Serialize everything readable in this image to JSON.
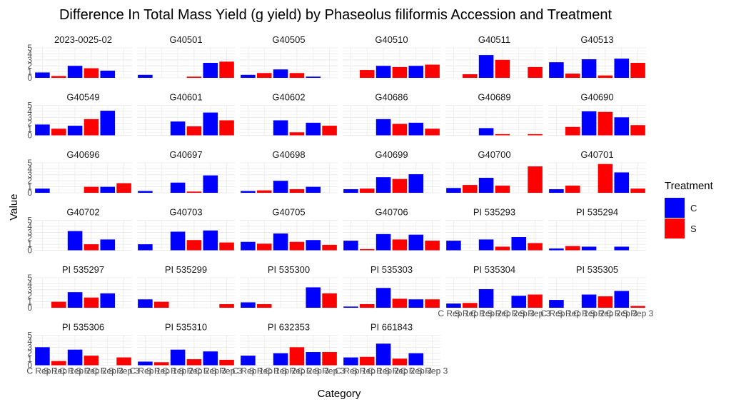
{
  "chart_data": {
    "type": "bar",
    "title": "Difference In Total Mass Yield (g yield) by Phaseolus filiformis Accession and Treatment",
    "xlabel": "Category",
    "ylabel": "Value",
    "ylim": [
      0,
      5
    ],
    "y_ticks": [
      "0",
      "1",
      "2",
      "3",
      "4",
      "5"
    ],
    "categories": [
      "C Rep 1",
      "S Rep 1",
      "C Rep 2",
      "S Rep 2",
      "C Rep 3",
      "S Rep 3"
    ],
    "legend": {
      "title": "Treatment",
      "placement": "right"
    },
    "series": [
      {
        "name": "C",
        "color": "#0000ff"
      },
      {
        "name": "S",
        "color": "#ff0000"
      }
    ],
    "grid": true,
    "facets": [
      {
        "name": "2023-0025-02",
        "values": [
          0.9,
          0.3,
          2.0,
          1.6,
          1.2,
          null
        ]
      },
      {
        "name": "G40501",
        "values": [
          0.5,
          null,
          null,
          0.2,
          2.5,
          2.7
        ]
      },
      {
        "name": "G40505",
        "values": [
          0.5,
          0.8,
          1.4,
          0.8,
          0.2,
          null
        ]
      },
      {
        "name": "G40510",
        "values": [
          null,
          1.3,
          2.0,
          1.8,
          2.0,
          2.2
        ]
      },
      {
        "name": "G40511",
        "values": [
          null,
          0.6,
          3.8,
          3.0,
          null,
          1.8
        ]
      },
      {
        "name": "G40513",
        "values": [
          2.6,
          0.7,
          3.1,
          0.4,
          3.2,
          2.5
        ]
      },
      {
        "name": "G40549",
        "values": [
          1.8,
          1.1,
          1.6,
          2.7,
          4.1,
          null
        ]
      },
      {
        "name": "G40601",
        "values": [
          null,
          null,
          2.3,
          1.5,
          3.8,
          2.5
        ]
      },
      {
        "name": "G40602",
        "values": [
          null,
          null,
          2.5,
          0.5,
          2.1,
          1.6
        ]
      },
      {
        "name": "G40686",
        "values": [
          null,
          null,
          2.7,
          1.9,
          2.1,
          1.1
        ]
      },
      {
        "name": "G40689",
        "values": [
          null,
          null,
          1.2,
          0.2,
          null,
          0.2
        ]
      },
      {
        "name": "G40690",
        "values": [
          null,
          1.4,
          4.0,
          3.9,
          3.0,
          1.7
        ]
      },
      {
        "name": "G40696",
        "values": [
          0.7,
          null,
          null,
          1.0,
          1.0,
          1.6
        ]
      },
      {
        "name": "G40697",
        "values": [
          0.3,
          null,
          1.7,
          0.2,
          2.9,
          null
        ]
      },
      {
        "name": "G40698",
        "values": [
          0.3,
          0.4,
          2.0,
          0.6,
          1.0,
          null
        ]
      },
      {
        "name": "G40699",
        "values": [
          0.6,
          0.7,
          2.6,
          2.3,
          3.1,
          null
        ]
      },
      {
        "name": "G40700",
        "values": [
          0.8,
          1.3,
          2.5,
          1.2,
          null,
          4.4
        ]
      },
      {
        "name": "G40701",
        "values": [
          0.6,
          1.2,
          null,
          4.8,
          3.4,
          0.7
        ]
      },
      {
        "name": "G40702",
        "values": [
          null,
          null,
          3.2,
          1.0,
          1.8,
          null
        ]
      },
      {
        "name": "G40703",
        "values": [
          1.0,
          null,
          3.1,
          1.7,
          3.3,
          1.3
        ]
      },
      {
        "name": "G40705",
        "values": [
          1.4,
          1.1,
          2.8,
          1.4,
          1.7,
          0.9
        ]
      },
      {
        "name": "G40706",
        "values": [
          1.6,
          0.2,
          2.7,
          1.8,
          2.6,
          1.6
        ]
      },
      {
        "name": "PI 535293",
        "values": [
          1.6,
          null,
          1.8,
          0.6,
          2.2,
          1.2
        ]
      },
      {
        "name": "PI 535294",
        "values": [
          0.3,
          0.7,
          0.6,
          null,
          0.6,
          null
        ]
      },
      {
        "name": "PI 535297",
        "values": [
          null,
          1.0,
          2.6,
          1.7,
          2.4,
          null
        ]
      },
      {
        "name": "PI 535299",
        "values": [
          1.4,
          1.0,
          null,
          null,
          null,
          0.6
        ]
      },
      {
        "name": "PI 535300",
        "values": [
          0.9,
          0.6,
          null,
          null,
          3.4,
          2.4
        ]
      },
      {
        "name": "PI 535303",
        "values": [
          0.2,
          0.6,
          3.3,
          1.5,
          1.4,
          1.4
        ]
      },
      {
        "name": "PI 535304",
        "values": [
          0.7,
          0.8,
          3.1,
          null,
          2.0,
          2.2
        ]
      },
      {
        "name": "PI 535305",
        "values": [
          1.3,
          null,
          2.2,
          1.9,
          2.8,
          0.3
        ]
      },
      {
        "name": "PI 535306",
        "values": [
          3.0,
          0.7,
          2.6,
          1.6,
          null,
          1.3
        ]
      },
      {
        "name": "PI 535310",
        "values": [
          0.6,
          0.5,
          2.6,
          1.0,
          2.3,
          0.9
        ]
      },
      {
        "name": "PI 632353",
        "values": [
          1.6,
          null,
          2.0,
          3.0,
          2.2,
          2.2
        ]
      },
      {
        "name": "PI 661843",
        "values": [
          1.3,
          1.4,
          3.6,
          1.1,
          2.0,
          null
        ]
      }
    ]
  }
}
